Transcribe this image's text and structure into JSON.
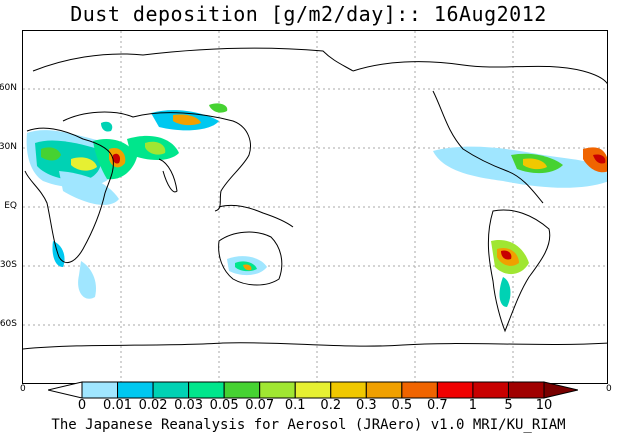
{
  "title": "Dust deposition [g/m2/day]:: 16Aug2012",
  "credit": "The Japanese Reanalysis for Aerosol (JRAero) v1.0 MRI/KU_RIAM",
  "lat_labels": [
    "60N",
    "30N",
    "EQ",
    "30S",
    "60S"
  ],
  "lon_edge_labels": [
    "0",
    "0"
  ],
  "colorbar": {
    "levels": [
      "0",
      "0.01",
      "0.02",
      "0.03",
      "0.05",
      "0.07",
      "0.1",
      "0.2",
      "0.3",
      "0.5",
      "0.7",
      "1",
      "5",
      "10"
    ],
    "colors": [
      "#ffffff",
      "#a0e6ff",
      "#00c8f0",
      "#00d2b4",
      "#00e68c",
      "#46d232",
      "#a0e632",
      "#e6f032",
      "#f0c800",
      "#f0a000",
      "#f06400",
      "#f00000",
      "#c80000",
      "#a00000",
      "#780000"
    ]
  },
  "map": {
    "coastline_color": "#000000",
    "grid_color": "#aaaaaa"
  }
}
